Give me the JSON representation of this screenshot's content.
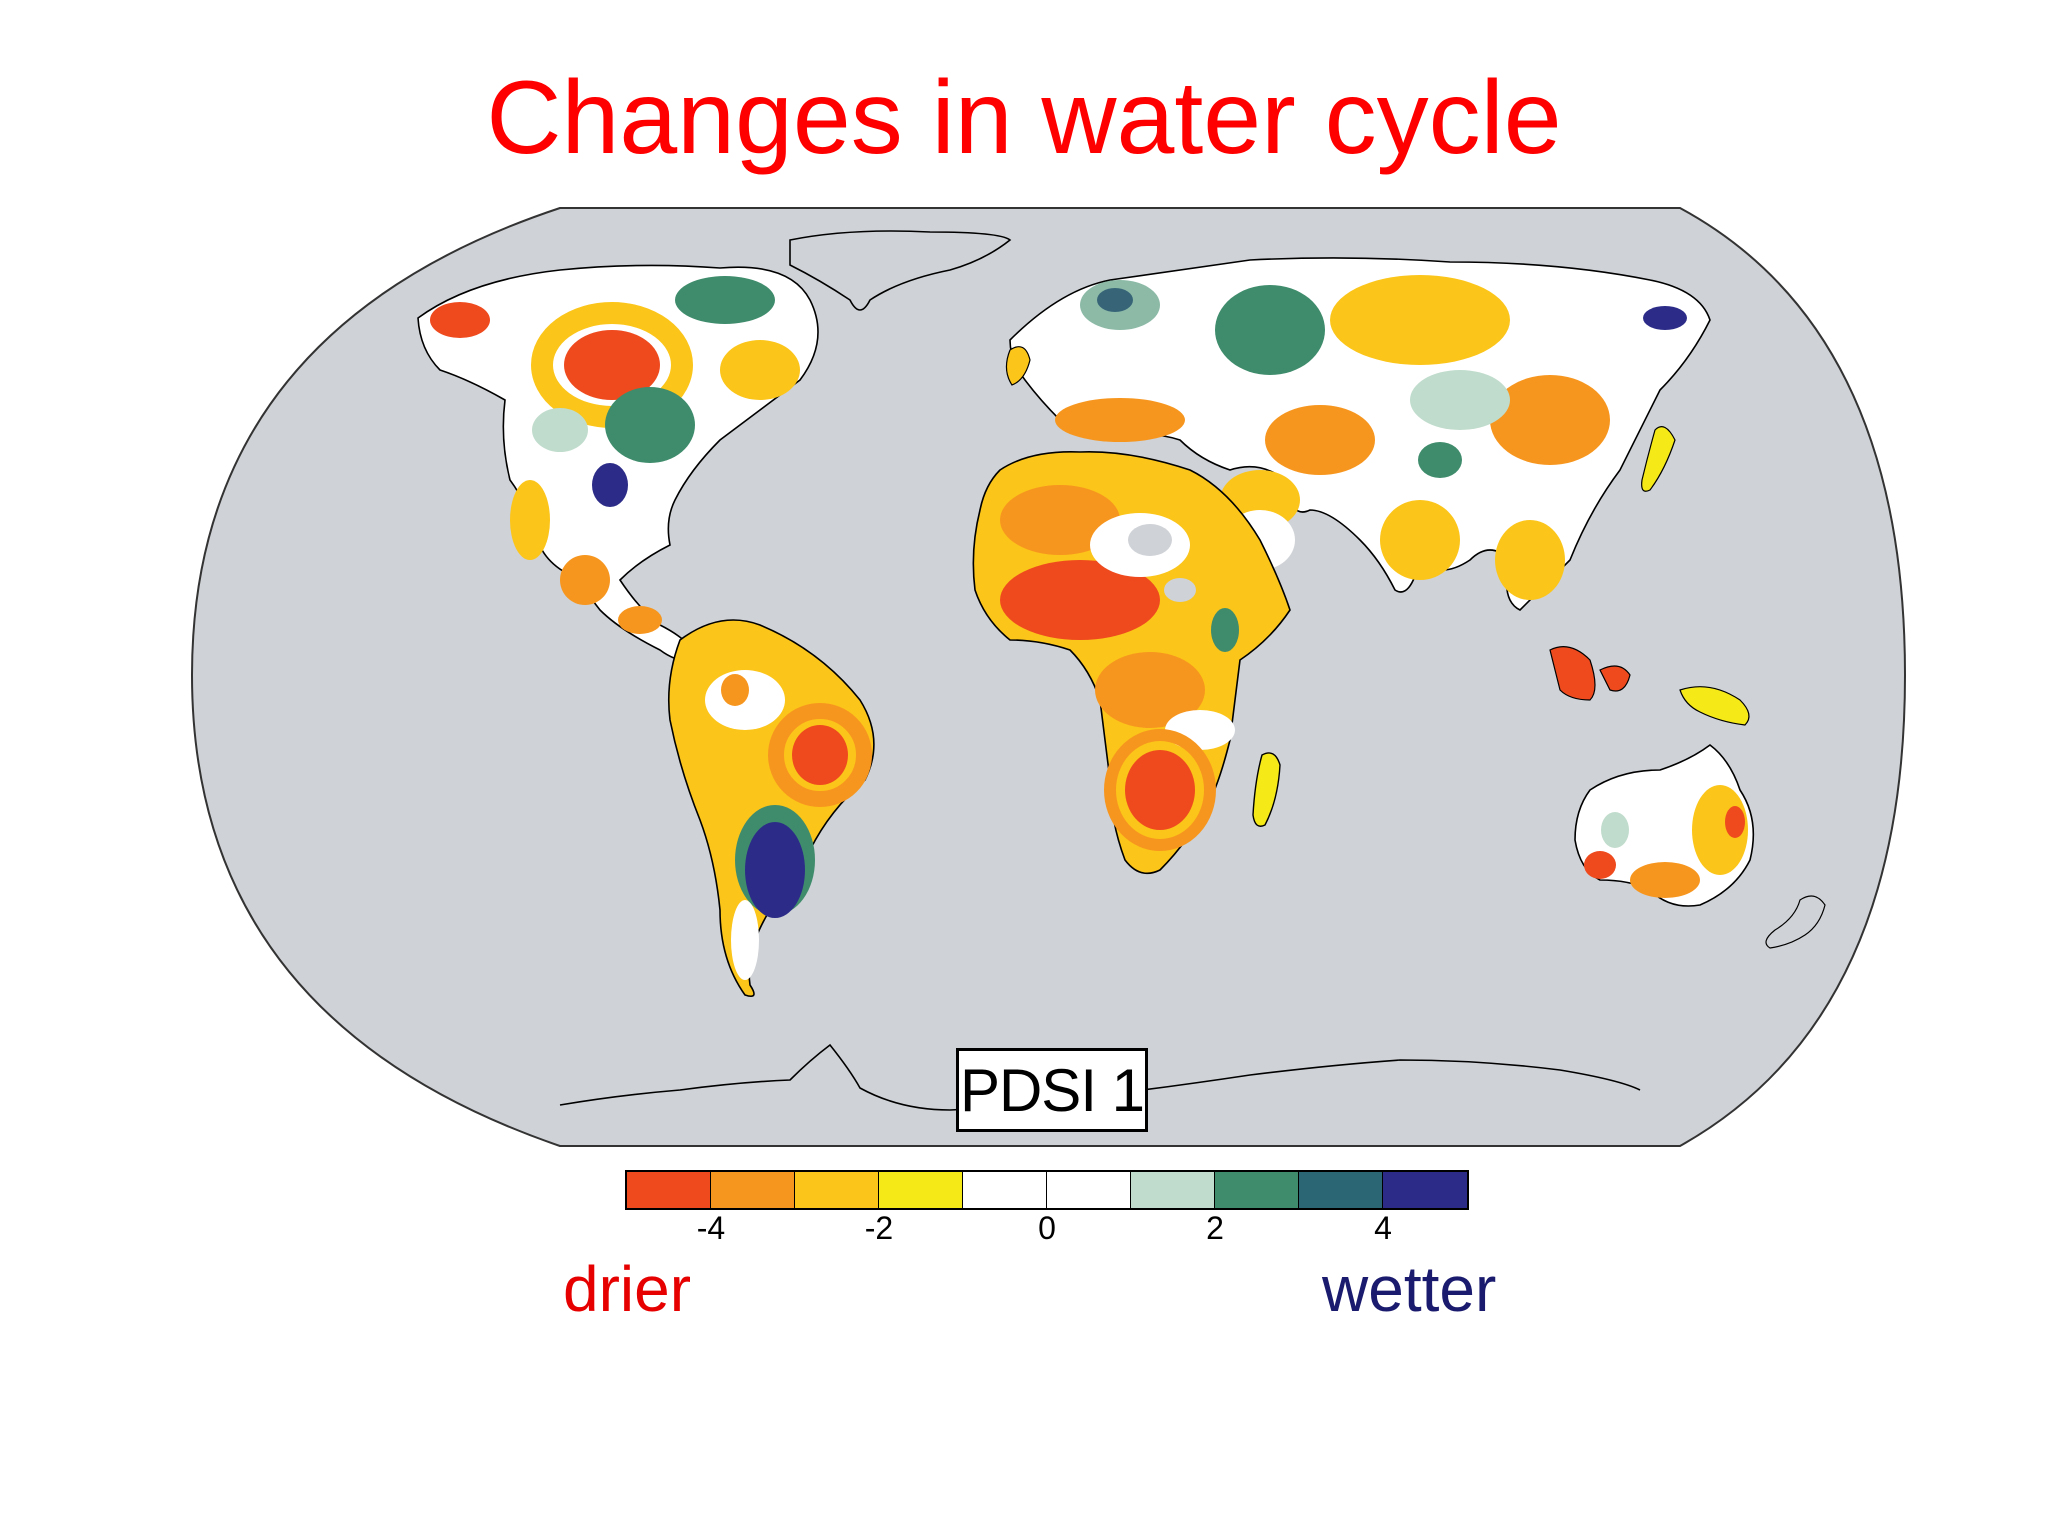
{
  "title": "Changes in water cycle",
  "index_label": "PDSI 1",
  "legend": {
    "colors": [
      "#ee4a1e",
      "#f7961e",
      "#fcc519",
      "#f5ea17",
      "#ffffff",
      "#ffffff",
      "#c0dccc",
      "#3f8c6c",
      "#2b6674",
      "#2c2c88"
    ],
    "ticks": [
      {
        "value": "-4",
        "pos": 1
      },
      {
        "value": "-2",
        "pos": 3
      },
      {
        "value": "0",
        "pos": 5
      },
      {
        "value": "2",
        "pos": 7
      },
      {
        "value": "4",
        "pos": 9
      }
    ],
    "drier_label": "drier",
    "wetter_label": "wetter"
  },
  "map": {
    "projection": "robinson-like",
    "ocean_color": "#cfd2d6",
    "palette": {
      "very_dry": "#ee4a1e",
      "dry": "#f7961e",
      "moderately_dry": "#fcc519",
      "slightly_dry": "#f5ea17",
      "neutral": "#ffffff",
      "slightly_wet": "#c0dccc",
      "wet": "#3f8c6c",
      "very_wet": "#2c2c88"
    }
  }
}
